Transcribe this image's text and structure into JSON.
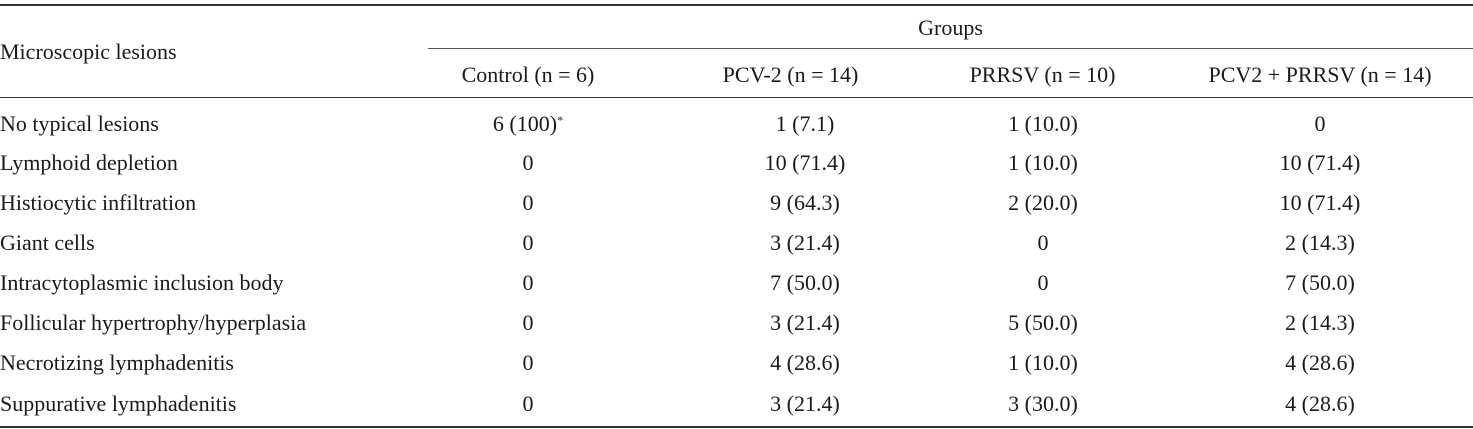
{
  "table": {
    "stub_header": "Microscopic lesions",
    "group_header": "Groups",
    "columns": [
      "Control (n = 6)",
      "PCV-2 (n = 14)",
      "PRRSV (n = 10)",
      "PCV2 + PRRSV (n = 14)"
    ],
    "footnote_mark": "*",
    "rows": [
      {
        "label": "No typical lesions",
        "values": [
          "6 (100)",
          "1 (7.1)",
          "1 (10.0)",
          "0"
        ]
      },
      {
        "label": "Lymphoid depletion",
        "values": [
          "0",
          "10 (71.4)",
          "1 (10.0)",
          "10 (71.4)"
        ]
      },
      {
        "label": "Histiocytic infiltration",
        "values": [
          "0",
          "9 (64.3)",
          "2 (20.0)",
          "10 (71.4)"
        ]
      },
      {
        "label": "Giant cells",
        "values": [
          "0",
          "3 (21.4)",
          "0",
          "2 (14.3)"
        ]
      },
      {
        "label": "Intracytoplasmic inclusion body",
        "values": [
          "0",
          "7 (50.0)",
          "0",
          "7 (50.0)"
        ]
      },
      {
        "label": "Follicular hypertrophy/hyperplasia",
        "values": [
          "0",
          "3 (21.4)",
          "5 (50.0)",
          "2 (14.3)"
        ]
      },
      {
        "label": "Necrotizing lymphadenitis",
        "values": [
          "0",
          "4 (28.6)",
          "1 (10.0)",
          "4 (28.6)"
        ]
      },
      {
        "label": "Suppurative lymphadenitis",
        "values": [
          "0",
          "3 (21.4)",
          "3 (30.0)",
          "4 (28.6)"
        ]
      }
    ]
  }
}
